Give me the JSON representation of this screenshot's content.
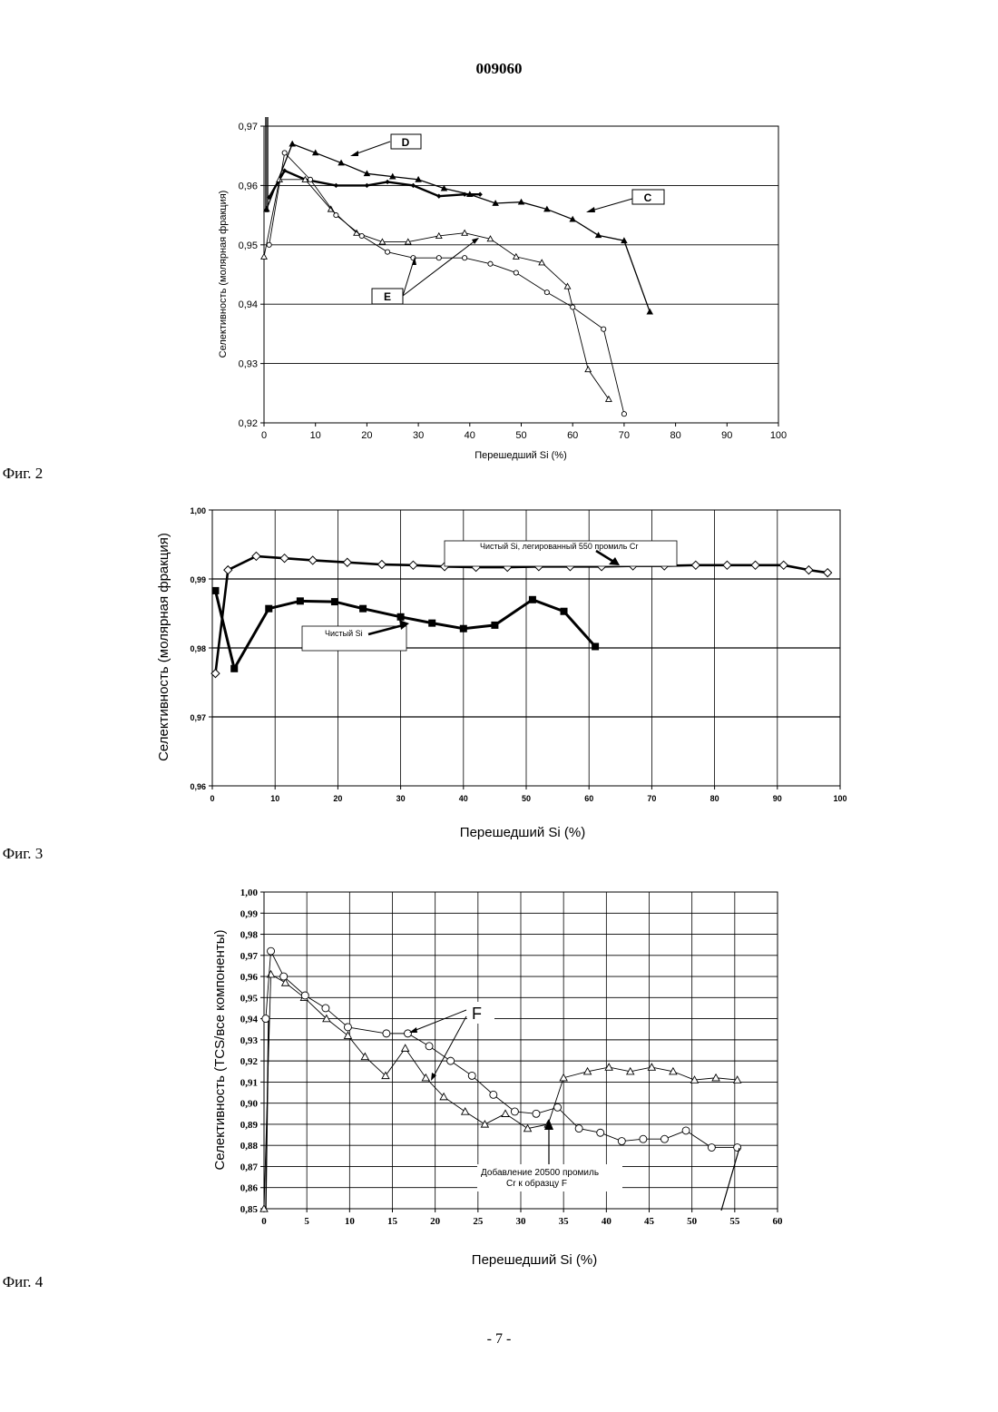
{
  "document": {
    "number": "009060",
    "page_number": "- 7 -"
  },
  "chart_data": [
    {
      "type": "line",
      "caption": "Фиг. 2",
      "xlabel": "Перешедший Si (%)",
      "ylabel": "Селективность (молярная фракция)",
      "xlim": [
        0,
        100
      ],
      "ylim": [
        0.92,
        0.97
      ],
      "xticks": [
        "0",
        "10",
        "20",
        "30",
        "40",
        "50",
        "60",
        "70",
        "80",
        "90",
        "100"
      ],
      "yticks": [
        "0,92",
        "0,93",
        "0,94",
        "0,95",
        "0,96",
        "0,97"
      ],
      "grid": "horizontal",
      "labels": [
        {
          "text": "D",
          "target_series": "D"
        },
        {
          "text": "C",
          "target_series": "C"
        },
        {
          "text": "E",
          "target_series": "E"
        }
      ],
      "series": [
        {
          "name": "D",
          "marker": "filled-triangle",
          "x": [
            0.5,
            5.5,
            10,
            15,
            20,
            25,
            30,
            35,
            40,
            45,
            50,
            55,
            60,
            65,
            70,
            75
          ],
          "y": [
            0.956,
            0.967,
            0.9655,
            0.9638,
            0.962,
            0.9615,
            0.961,
            0.9595,
            0.9585,
            0.957,
            0.9572,
            0.956,
            0.9543,
            0.9516,
            0.9507,
            0.9387
          ]
        },
        {
          "name": "C",
          "marker": "small-diamond",
          "x": [
            1,
            4,
            8,
            14,
            20,
            24,
            29,
            34,
            39,
            42
          ],
          "y": [
            0.958,
            0.9625,
            0.961,
            0.96,
            0.96,
            0.9606,
            0.96,
            0.9582,
            0.9585,
            0.9585
          ]
        },
        {
          "name": "E-triangles",
          "marker": "open-triangle",
          "x": [
            0,
            3,
            8,
            13,
            18,
            23,
            28,
            34,
            39,
            44,
            49,
            54,
            59,
            63,
            67
          ],
          "y": [
            0.948,
            0.961,
            0.961,
            0.956,
            0.952,
            0.9505,
            0.9505,
            0.9515,
            0.952,
            0.951,
            0.948,
            0.947,
            0.943,
            0.929,
            0.924
          ]
        },
        {
          "name": "E-circles",
          "marker": "open-circle",
          "x": [
            1,
            4,
            9,
            14,
            19,
            24,
            29,
            34,
            39,
            44,
            49,
            55,
            60,
            66,
            70
          ],
          "y": [
            0.95,
            0.9655,
            0.961,
            0.955,
            0.9515,
            0.9488,
            0.9478,
            0.9478,
            0.9478,
            0.9468,
            0.9453,
            0.942,
            0.9395,
            0.9358,
            0.9215
          ]
        }
      ]
    },
    {
      "type": "line",
      "caption": "Фиг. 3",
      "xlabel": "Перешедший Si (%)",
      "ylabel": "Селективность (молярная фракция)",
      "xlim": [
        0,
        100
      ],
      "ylim": [
        0.96,
        1.0
      ],
      "xticks": [
        "0",
        "10",
        "20",
        "30",
        "40",
        "50",
        "60",
        "70",
        "80",
        "90",
        "100"
      ],
      "yticks": [
        "0,96",
        "0,97",
        "0,98",
        "0,99",
        "1,00"
      ],
      "grid": "both",
      "annotations": [
        "Чистый Si, легированный  550 промиль Cr",
        "Чистый Si"
      ],
      "series": [
        {
          "name": "Чистый Si, легированный 550 промиль Cr",
          "marker": "open-diamond",
          "x": [
            0.5,
            2.5,
            7,
            11.5,
            16,
            21.5,
            27,
            32,
            37,
            42,
            47,
            52,
            57,
            62,
            67,
            72,
            77,
            82,
            86.5,
            91,
            95,
            98
          ],
          "y": [
            0.9763,
            0.9913,
            0.9933,
            0.993,
            0.9927,
            0.9924,
            0.9921,
            0.992,
            0.9918,
            0.9917,
            0.9917,
            0.9918,
            0.9918,
            0.9918,
            0.9919,
            0.9919,
            0.992,
            0.992,
            0.992,
            0.992,
            0.9913,
            0.9909
          ]
        },
        {
          "name": "Чистый Si",
          "marker": "filled-square",
          "x": [
            0.5,
            3.5,
            9,
            14,
            19.5,
            24,
            30,
            35,
            40,
            45,
            51,
            56,
            61
          ],
          "y": [
            0.9883,
            0.977,
            0.9857,
            0.9868,
            0.9867,
            0.9857,
            0.9845,
            0.9836,
            0.9828,
            0.9833,
            0.987,
            0.9853,
            0.9802
          ]
        }
      ]
    },
    {
      "type": "line",
      "caption": "Фиг. 4",
      "xlabel": "Перешедший Si (%)",
      "ylabel": "Селективность (TCS/все компоненты)",
      "xlim": [
        0,
        60
      ],
      "ylim": [
        0.85,
        1.0
      ],
      "xticks": [
        "0",
        "5",
        "10",
        "15",
        "20",
        "25",
        "30",
        "35",
        "40",
        "45",
        "50",
        "55",
        "60"
      ],
      "yticks": [
        "0,85",
        "0,86",
        "0,87",
        "0,88",
        "0,89",
        "0,90",
        "0,91",
        "0,92",
        "0,93",
        "0,94",
        "0,95",
        "0,96",
        "0,97",
        "0,98",
        "0,99",
        "1,00"
      ],
      "grid": "both",
      "annotations": [
        "F",
        "Добавление 20500 промиль",
        "Cr к образцу F"
      ],
      "series": [
        {
          "name": "F-triangles",
          "marker": "open-triangle",
          "x": [
            0,
            0.8,
            2.5,
            4.7,
            7.3,
            9.8,
            11.8,
            14.2,
            16.5,
            18.9,
            21,
            23.5,
            25.8,
            28.2,
            30.8,
            33.2,
            35,
            37.8,
            40.3,
            42.8,
            45.3,
            47.8,
            50.3,
            52.8,
            55.3
          ],
          "y": [
            0.85,
            0.961,
            0.957,
            0.95,
            0.94,
            0.932,
            0.922,
            0.913,
            0.926,
            0.912,
            0.903,
            0.896,
            0.89,
            0.895,
            0.888,
            0.89,
            0.912,
            0.915,
            0.917,
            0.915,
            0.917,
            0.915,
            0.911,
            0.912,
            0.911
          ]
        },
        {
          "name": "F-circles",
          "marker": "open-circle",
          "x": [
            0.2,
            0.8,
            2.3,
            4.8,
            7.2,
            9.8,
            14.3,
            16.8,
            19.3,
            21.8,
            24.3,
            26.8,
            29.3,
            31.8,
            34.3,
            36.8,
            39.3,
            41.8,
            44.3,
            46.8,
            49.3,
            52.3,
            55.3
          ],
          "y": [
            0.94,
            0.972,
            0.96,
            0.951,
            0.945,
            0.936,
            0.933,
            0.933,
            0.927,
            0.92,
            0.913,
            0.904,
            0.896,
            0.895,
            0.898,
            0.888,
            0.886,
            0.882,
            0.883,
            0.883,
            0.887,
            0.879,
            0.879
          ]
        }
      ]
    }
  ]
}
